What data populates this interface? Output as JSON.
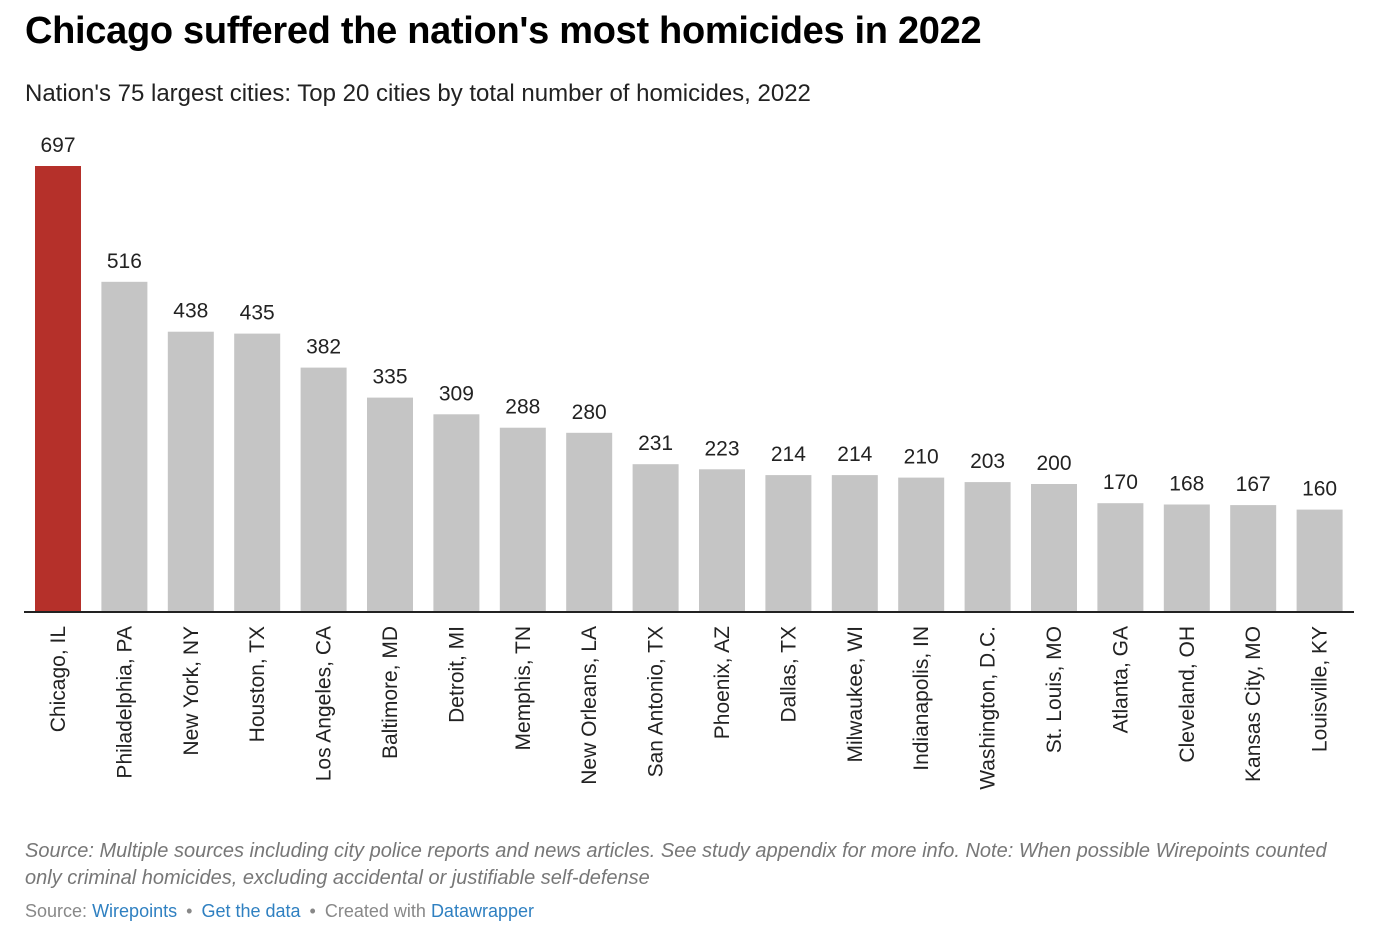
{
  "header": {
    "title": "Chicago suffered the nation's most homicides in 2022",
    "subtitle": "Nation's 75 largest cities: Top 20 cities by total number of homicides, 2022"
  },
  "colors": {
    "highlight": "#b5302a",
    "bar": "#c5c5c5",
    "axis": "#222222",
    "link": "#2f80c1"
  },
  "chart_data": {
    "type": "bar",
    "title": "Chicago suffered the nation's most homicides in 2022",
    "subtitle": "Nation's 75 largest cities: Top 20 cities by total number of homicides, 2022",
    "xlabel": "",
    "ylabel": "",
    "ylim": [
      0,
      697
    ],
    "grid": false,
    "highlight_category": "Chicago, IL",
    "categories": [
      "Chicago, IL",
      "Philadelphia, PA",
      "New York, NY",
      "Houston, TX",
      "Los Angeles, CA",
      "Baltimore, MD",
      "Detroit, MI",
      "Memphis, TN",
      "New Orleans, LA",
      "San Antonio, TX",
      "Phoenix, AZ",
      "Dallas, TX",
      "Milwaukee, WI",
      "Indianapolis, IN",
      "Washington, D.C.",
      "St. Louis, MO",
      "Atlanta, GA",
      "Cleveland, OH",
      "Kansas City, MO",
      "Louisville, KY"
    ],
    "values": [
      697,
      516,
      438,
      435,
      382,
      335,
      309,
      288,
      280,
      231,
      223,
      214,
      214,
      210,
      203,
      200,
      170,
      168,
      167,
      160
    ]
  },
  "notes": {
    "text": "Source: Multiple sources including city police reports and news articles. See study appendix for more info. Note: When possible Wirepoints counted only criminal homicides, excluding accidental or justifiable self-defense"
  },
  "footer": {
    "source_prefix": "Source:",
    "source_link": "Wirepoints",
    "separator": "•",
    "data_link": "Get the data",
    "created_prefix": "Created with",
    "created_link": "Datawrapper"
  }
}
